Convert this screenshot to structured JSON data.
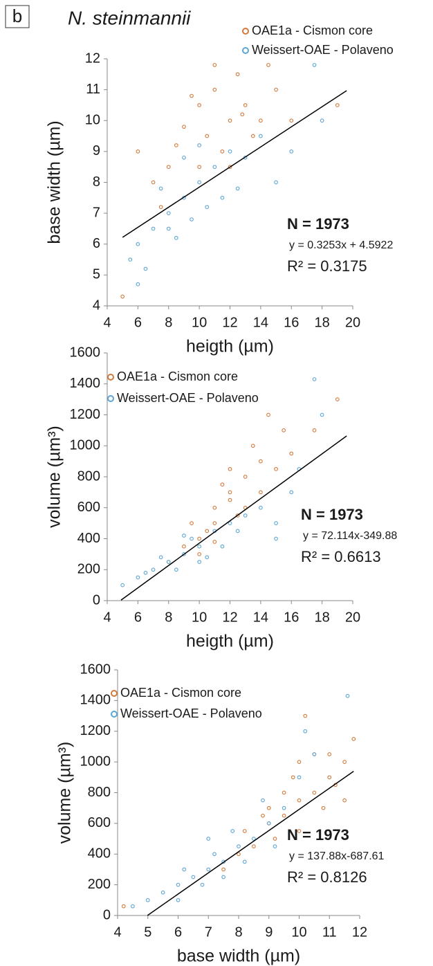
{
  "figure": {
    "panel_label": "b",
    "title": "N. steinmannii"
  },
  "chart_data": [
    {
      "type": "scatter",
      "xlabel": "heigth (µm)",
      "ylabel": "base width (µm)",
      "xlim": [
        4,
        20
      ],
      "ylim": [
        4,
        12
      ],
      "xticks": [
        4,
        6,
        8,
        10,
        12,
        14,
        16,
        18,
        20
      ],
      "yticks": [
        4,
        5,
        6,
        7,
        8,
        9,
        10,
        11,
        12
      ],
      "series": [
        {
          "name": "OAE1a -  Cismon core",
          "color": "#d2793a",
          "x": [
            10,
            11,
            12,
            9,
            13,
            12.5,
            11.5,
            8,
            14,
            10.5,
            7,
            6,
            15,
            9.5,
            13.5,
            11,
            12,
            16,
            8.5,
            7.5,
            5,
            19,
            14.5,
            10,
            12.8
          ],
          "values": [
            10.5,
            11,
            10,
            9.8,
            10.5,
            11.5,
            9,
            8.5,
            10,
            9.5,
            8,
            9,
            11,
            10.8,
            9.5,
            11.8,
            8.5,
            10,
            9.2,
            7.2,
            4.3,
            10.5,
            11.8,
            8.5,
            10.2
          ]
        },
        {
          "name": "Weissert-OAE - Polaveno",
          "color": "#5aa5d6",
          "x": [
            8,
            9,
            10,
            7,
            11,
            9.5,
            6,
            12,
            8.5,
            10.5,
            13,
            7.5,
            5.5,
            14,
            15,
            16,
            9,
            11.5,
            6.5,
            17.5,
            8,
            10,
            12.5,
            6,
            18
          ],
          "values": [
            7,
            7.5,
            8,
            6.5,
            8.5,
            6.8,
            6,
            9,
            6.2,
            7.2,
            8.8,
            7.8,
            5.5,
            9.5,
            8,
            9,
            8.8,
            7.5,
            5.2,
            11.8,
            6.5,
            9.2,
            7.8,
            4.7,
            10
          ]
        }
      ],
      "fit": {
        "slope": 0.3253,
        "intercept": 4.5922,
        "x": [
          5,
          19.6
        ]
      },
      "n_label": "N = 1973",
      "equation": "y = 0.3253x + 4.5922",
      "r2": "R² = 0.3175"
    },
    {
      "type": "scatter",
      "xlabel": "heigth (µm)",
      "ylabel": "volume (µm³)",
      "xlim": [
        4,
        20
      ],
      "ylim": [
        0,
        1600
      ],
      "xticks": [
        4,
        6,
        8,
        10,
        12,
        14,
        16,
        18,
        20
      ],
      "yticks": [
        0,
        200,
        400,
        600,
        800,
        1000,
        1200,
        1400,
        1600
      ],
      "series": [
        {
          "name": "OAE1a -  Cismon core",
          "color": "#d2793a",
          "x": [
            10,
            11,
            12,
            13,
            12,
            14,
            11,
            10.5,
            13.5,
            14.5,
            9,
            12.5,
            15,
            11.5,
            13,
            16,
            10,
            19,
            14,
            8,
            12,
            15.5,
            9.5,
            17.5,
            11
          ],
          "values": [
            400,
            500,
            650,
            800,
            700,
            900,
            600,
            450,
            1000,
            1200,
            350,
            550,
            850,
            750,
            600,
            950,
            300,
            1300,
            700,
            250,
            850,
            1100,
            500,
            1100,
            380
          ]
        },
        {
          "name": "Weissert-OAE - Polaveno",
          "color": "#5aa5d6",
          "x": [
            8,
            9,
            10,
            7,
            11,
            9.5,
            6,
            12,
            8.5,
            10.5,
            13,
            7.5,
            5,
            14,
            15,
            16,
            9,
            11.5,
            6.5,
            17.5,
            18,
            10,
            12.5,
            16.5,
            15
          ],
          "values": [
            250,
            300,
            350,
            200,
            450,
            400,
            150,
            500,
            200,
            280,
            550,
            280,
            100,
            600,
            500,
            700,
            420,
            350,
            180,
            1430,
            1200,
            250,
            450,
            850,
            400
          ]
        }
      ],
      "fit": {
        "slope": 72.114,
        "intercept": -349.88,
        "x": [
          4.9,
          19.6
        ]
      },
      "n_label": "N = 1973",
      "equation": "y = 72.114x-349.88",
      "r2": "R² = 0.6613"
    },
    {
      "type": "scatter",
      "xlabel": "base width (µm)",
      "ylabel": "volume (µm³)",
      "xlim": [
        4,
        12
      ],
      "ylim": [
        0,
        1600
      ],
      "xticks": [
        4,
        5,
        6,
        7,
        8,
        9,
        10,
        11,
        12
      ],
      "yticks": [
        0,
        200,
        400,
        600,
        800,
        1000,
        1200,
        1400,
        1600
      ],
      "series": [
        {
          "name": "OAE1a -  Cismon core",
          "color": "#d2793a",
          "x": [
            9,
            10,
            9.5,
            10.5,
            11,
            8.5,
            10,
            11.5,
            10.2,
            9.8,
            8,
            10.8,
            11.8,
            9.2,
            11,
            10.5,
            8.8,
            7.5,
            9.5,
            11.2,
            4.2,
            10,
            8.2,
            9,
            11.5
          ],
          "values": [
            600,
            750,
            650,
            800,
            900,
            450,
            550,
            1000,
            1300,
            900,
            400,
            700,
            1150,
            500,
            1050,
            1050,
            650,
            300,
            800,
            850,
            60,
            1000,
            550,
            700,
            750
          ]
        },
        {
          "name": "Weissert-OAE - Polaveno",
          "color": "#5aa5d6",
          "x": [
            7,
            7.5,
            8,
            6.5,
            6,
            8.5,
            7.2,
            5.5,
            6.8,
            9,
            7.8,
            6.2,
            8.2,
            9.5,
            10,
            10.5,
            11.6,
            5,
            7,
            8.8,
            6,
            9.2,
            4.5,
            10.2,
            7.5
          ],
          "values": [
            300,
            350,
            450,
            250,
            200,
            500,
            400,
            150,
            200,
            600,
            550,
            300,
            350,
            700,
            900,
            1050,
            1430,
            100,
            500,
            750,
            100,
            450,
            60,
            1200,
            250
          ]
        }
      ],
      "fit": {
        "slope": 137.88,
        "intercept": -687.61,
        "x": [
          4.99,
          11.8
        ]
      },
      "n_label": "N = 1973",
      "equation": "y = 137.88x-687.61",
      "r2": "R² = 0.8126"
    }
  ]
}
